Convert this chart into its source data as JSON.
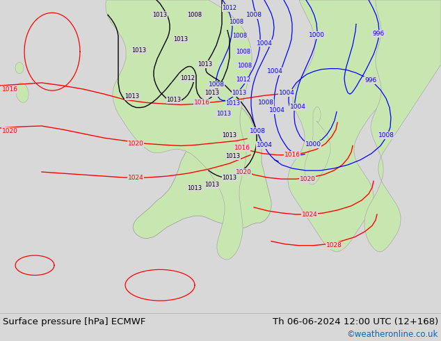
{
  "title_left": "Surface pressure [hPa] ECMWF",
  "title_right": "Th 06-06-2024 12:00 UTC (12+168)",
  "watermark": "©weatheronline.co.uk",
  "watermark_color": "#0066cc",
  "bg_color": "#d8d8d8",
  "land_color": "#c8e6b0",
  "ocean_color": "#d8d8d8",
  "bottom_bar_color": "#d8d8d8",
  "title_fontsize": 9.5,
  "watermark_fontsize": 8.5
}
